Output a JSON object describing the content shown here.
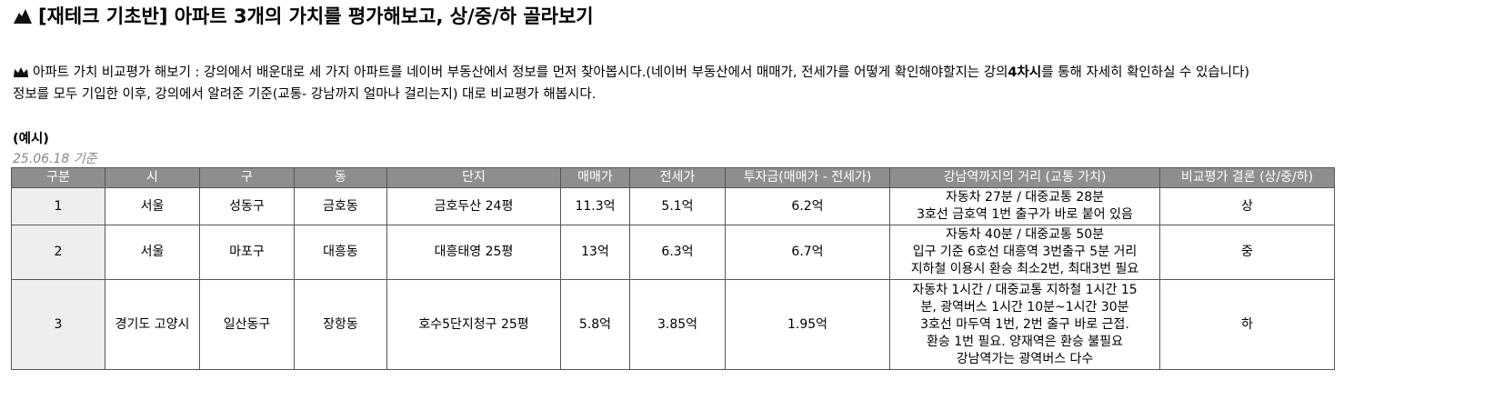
{
  "header": {
    "title": "[재테크 기초반] 아파트 3개의 가치를 평가해보고, 상/중/하 골라보기"
  },
  "intro": {
    "line1": [
      "아파트 가치 비교평가 해보기 : 강의에서 배운대로 세 가지 아파트를 네이버 부동산에서 정보를 먼저 찾아봅시다.(네이버 부동산에서 매매가, 전세가를 어떻게 확인해야할지는 강의 ",
      "4차시",
      "를 통해 자세히 확인하실 수 있습니다)"
    ],
    "line2": "정보를 모두 기입한 이후, 강의에서 알려준 기준(교통- 강남까지 얼마나 걸리는지) 대로 비교평가 해봅시다."
  },
  "example": {
    "label": "(예시)",
    "date": "25.06.18 기준"
  },
  "table": {
    "columns": [
      "구분",
      "시",
      "구",
      "동",
      "단지",
      "매매가",
      "전세가",
      "투자금(매매가 - 전세가)",
      "강남역까지의 거리 (교통 가치)",
      "비교평가 결론 (상/중/하)"
    ],
    "rows": [
      [
        "1",
        "서울",
        "성동구",
        "금호동",
        "금호두산 24평",
        "11.3억",
        "5.1억",
        "6.2억",
        [
          "자동차 27분 / 대중교통 28분",
          "3호선 금호역 1번 출구가 바로 붙어 있음"
        ],
        "상"
      ],
      [
        "2",
        "서울",
        "마포구",
        "대흥동",
        "대흥태영 25평",
        "13억",
        "6.3억",
        "6.7억",
        [
          "자동차 40분 / 대중교통 50분",
          "입구 기준 6호선 대흥역 3번출구 5분 거리",
          "지하철 이용시 환승 최소2번, 최대3번 필요"
        ],
        "중"
      ],
      [
        "3",
        "경기도 고양시",
        "일산동구",
        "장항동",
        "호수5단지청구 25평",
        "5.8억",
        "3.85억",
        "1.95억",
        [
          "자동차 1시간 / 대중교통 지하철 1시간 15",
          "분, 광역버스 1시간 10분~1시간 30분",
          "3호선 마두역 1번, 2번 출구 바로 근접.",
          "환승 1번 필요. 양재역은 환승 불필요",
          "강남역가는 광역버스 다수"
        ],
        "하"
      ]
    ]
  }
}
